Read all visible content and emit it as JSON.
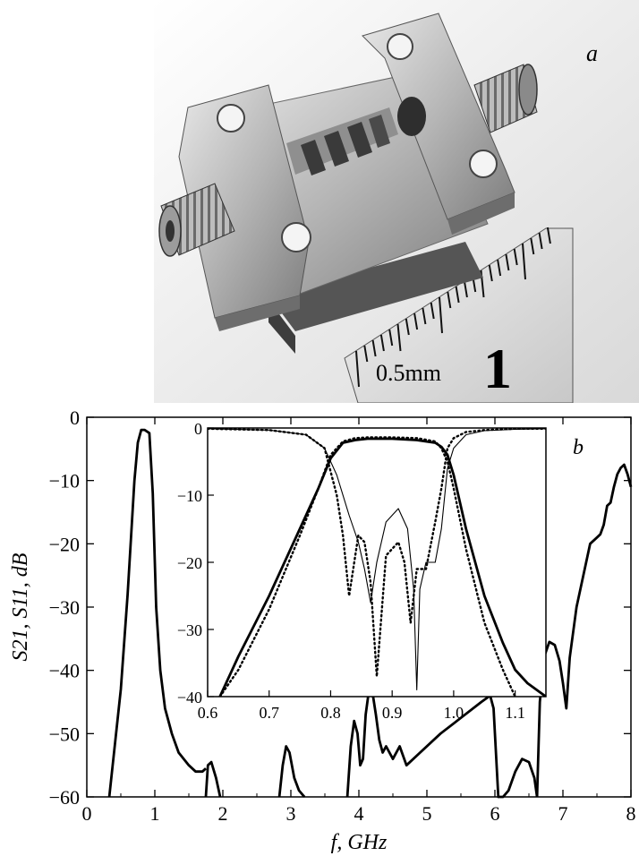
{
  "panel_a": {
    "label": "a",
    "ruler_text": "0.5mm",
    "ruler_number": "1"
  },
  "chart_data": [
    {
      "type": "line",
      "panel_label": "b",
      "xlabel": "f, GHz",
      "ylabel": "S21, S11, dB",
      "xlim": [
        0,
        8
      ],
      "ylim": [
        -60,
        0
      ],
      "xticks": [
        "0",
        "1",
        "2",
        "3",
        "4",
        "5",
        "6",
        "7",
        "8"
      ],
      "yticks": [
        "0",
        "−10",
        "−20",
        "−30",
        "−40",
        "−50",
        "−60"
      ],
      "series": [
        {
          "x": [
            0.33,
            0.5,
            0.6,
            0.7,
            0.75,
            0.8,
            0.85,
            0.92,
            0.97,
            1.02,
            1.08,
            1.15,
            1.25,
            1.35,
            1.5,
            1.6,
            1.7,
            1.75
          ],
          "y": [
            -60,
            -43,
            -28,
            -10,
            -4,
            -2,
            -2,
            -2.5,
            -12,
            -30,
            -40,
            -46,
            -50,
            -53,
            -55,
            -56,
            -56,
            -55.5
          ]
        },
        {
          "x": [
            1.75,
            1.78,
            1.83,
            1.9,
            1.96
          ],
          "y": [
            -60,
            -55,
            -54.5,
            -57,
            -60
          ]
        },
        {
          "x": [
            2.83,
            2.88,
            2.93,
            2.98,
            3.05,
            3.12,
            3.2
          ],
          "y": [
            -60,
            -55,
            -52,
            -53,
            -57,
            -59,
            -60
          ]
        },
        {
          "x": [
            3.83,
            3.88,
            3.93,
            3.98,
            4.02,
            4.06,
            4.1,
            4.15,
            4.2,
            4.25,
            4.3,
            4.35,
            4.4,
            4.5,
            4.6,
            4.7,
            4.9,
            5.2,
            5.5,
            5.8,
            5.93,
            5.98,
            6.05,
            6.12,
            6.2,
            6.3,
            6.4,
            6.5,
            6.58,
            6.62
          ],
          "y": [
            -60,
            -52,
            -48,
            -50,
            -55,
            -54,
            -47,
            -43,
            -43.5,
            -47,
            -51,
            -53,
            -52,
            -54,
            -52,
            -55,
            -53,
            -50,
            -47.5,
            -45,
            -44,
            -46,
            -60,
            -60,
            -59,
            -56,
            -54,
            -54.5,
            -57,
            -60
          ]
        },
        {
          "x": [
            6.62,
            6.66,
            6.72,
            6.8,
            6.88,
            6.95,
            7.0,
            7.05,
            7.1,
            7.2,
            7.3,
            7.4,
            7.5,
            7.55,
            7.6,
            7.65,
            7.7,
            7.75,
            7.8,
            7.85,
            7.9,
            7.95,
            8.0
          ],
          "y": [
            -60,
            -45,
            -38,
            -35.5,
            -36,
            -38.5,
            -42,
            -46,
            -38,
            -30,
            -25,
            -20,
            -19,
            -18.5,
            -17,
            -14,
            -13.5,
            -11,
            -9,
            -8,
            -7.5,
            -9,
            -11
          ]
        }
      ]
    },
    {
      "type": "line",
      "panel": "inset",
      "xlim": [
        0.6,
        1.15
      ],
      "ylim": [
        -40,
        0
      ],
      "xticks": [
        "0.6",
        "0.7",
        "0.8",
        "0.9",
        "1.0",
        "1.1"
      ],
      "yticks": [
        "0",
        "−10",
        "−20",
        "−30",
        "−40"
      ],
      "series": [
        {
          "style": "thick solid",
          "x": [
            0.62,
            0.65,
            0.7,
            0.75,
            0.78,
            0.8,
            0.82,
            0.84,
            0.86,
            0.9,
            0.94,
            0.97,
            0.98,
            0.99,
            1.0,
            1.02,
            1.05,
            1.08,
            1.1,
            1.12,
            1.15
          ],
          "y": [
            -40,
            -34,
            -25,
            -15,
            -9,
            -4.5,
            -2.2,
            -1.8,
            -1.6,
            -1.6,
            -1.8,
            -2.2,
            -2.8,
            -4,
            -7,
            -15,
            -25,
            -32,
            -36,
            -38,
            -40
          ]
        },
        {
          "style": "thin solid",
          "x": [
            0.6,
            0.7,
            0.76,
            0.79,
            0.81,
            0.83,
            0.845,
            0.855,
            0.865,
            0.875,
            0.89,
            0.91,
            0.925,
            0.935,
            0.94,
            0.945,
            0.955,
            0.97,
            0.98,
            0.99,
            1.0,
            1.02,
            1.05,
            1.1,
            1.15
          ],
          "y": [
            -0.1,
            -0.3,
            -1,
            -3,
            -7,
            -13,
            -17,
            -21,
            -26,
            -20,
            -14,
            -12,
            -15,
            -24,
            -39,
            -24,
            -20,
            -20,
            -15,
            -6,
            -3,
            -1,
            -0.4,
            -0.2,
            -0.1
          ]
        },
        {
          "style": "dotted",
          "x": [
            0.6,
            0.7,
            0.76,
            0.79,
            0.81,
            0.82,
            0.83,
            0.845,
            0.855,
            0.865,
            0.875,
            0.89,
            0.91,
            0.92,
            0.93,
            0.94,
            0.955,
            0.97,
            0.98,
            0.985,
            0.99,
            1.0,
            1.02,
            1.05,
            1.1,
            1.15
          ],
          "y": [
            -0.1,
            -0.3,
            -1,
            -3,
            -10,
            -16,
            -25,
            -16,
            -17,
            -23,
            -37,
            -19,
            -17,
            -20,
            -29,
            -21,
            -21,
            -14,
            -9,
            -6,
            -3,
            -1.5,
            -0.6,
            -0.3,
            -0.1,
            -0.1
          ]
        },
        {
          "style": "dotted",
          "x": [
            0.62,
            0.65,
            0.7,
            0.75,
            0.78,
            0.8,
            0.82,
            0.84,
            0.86,
            0.9,
            0.94,
            0.97,
            0.98,
            0.99,
            1.0,
            1.02,
            1.05,
            1.08,
            1.1,
            1.12
          ],
          "y": [
            -40,
            -36,
            -27,
            -16,
            -9,
            -4,
            -2,
            -1.5,
            -1.4,
            -1.4,
            -1.5,
            -2,
            -3,
            -5,
            -9,
            -18,
            -29,
            -36,
            -40,
            -42
          ]
        }
      ]
    }
  ]
}
